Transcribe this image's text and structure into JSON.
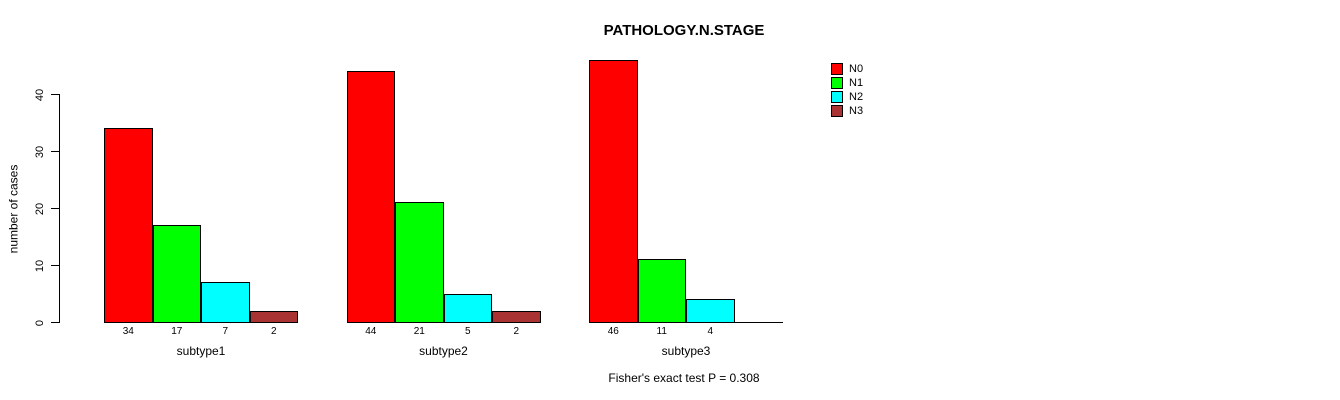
{
  "title": "PATHOLOGY.N.STAGE",
  "ylabel": "number of cases",
  "footer": "Fisher's exact test P = 0.308",
  "chart_data": {
    "type": "bar",
    "title": "PATHOLOGY.N.STAGE",
    "xlabel": "",
    "ylabel": "number of cases",
    "categories": [
      "subtype1",
      "subtype2",
      "subtype3"
    ],
    "series": [
      {
        "name": "N0",
        "color": "#FF0000",
        "values": [
          34,
          44,
          46
        ]
      },
      {
        "name": "N1",
        "color": "#00FF00",
        "values": [
          17,
          21,
          11
        ]
      },
      {
        "name": "N2",
        "color": "#00FFFF",
        "values": [
          7,
          5,
          4
        ]
      },
      {
        "name": "N3",
        "color": "#A93232",
        "values": [
          2,
          2,
          0
        ]
      }
    ],
    "bar_value_labels": [
      [
        "34",
        "17",
        "7",
        "2"
      ],
      [
        "44",
        "21",
        "5",
        "2"
      ],
      [
        "46",
        "11",
        "4",
        ""
      ]
    ],
    "yticks": [
      0,
      10,
      20,
      30,
      40
    ],
    "ylim": [
      0,
      46
    ],
    "grid": false,
    "legend_position": "right-outside",
    "annotation": "Fisher's exact test P = 0.308"
  }
}
